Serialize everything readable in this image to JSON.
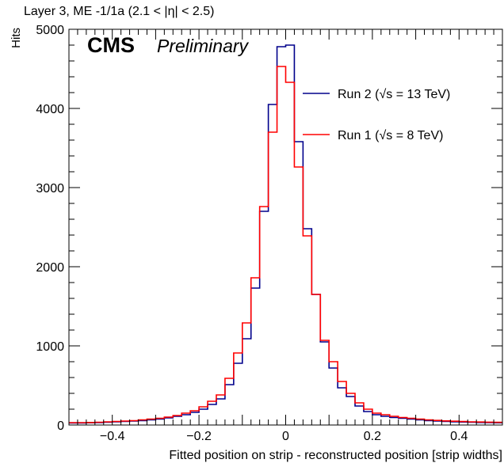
{
  "chart_data": {
    "type": "histogram",
    "title": "Layer 3, ME -1/1a (2.1 < |η| < 2.5)",
    "xlabel": "Fitted position on strip - reconstructed position [strip widths]",
    "ylabel": "Hits",
    "xlim": [
      -0.5,
      0.5
    ],
    "ylim": [
      0,
      5000
    ],
    "x_ticks": [
      -0.4,
      -0.2,
      0,
      0.2,
      0.4
    ],
    "x_tick_labels": [
      "−0.4",
      "−0.2",
      "0",
      "0.2",
      "0.4"
    ],
    "y_ticks": [
      0,
      1000,
      2000,
      3000,
      4000,
      5000
    ],
    "y_tick_labels": [
      "0",
      "1000",
      "2000",
      "3000",
      "4000",
      "5000"
    ],
    "grid": false,
    "bin_edges": [
      -0.5,
      -0.48,
      -0.46,
      -0.44,
      -0.42,
      -0.4,
      -0.38,
      -0.36,
      -0.34,
      -0.32,
      -0.3,
      -0.28,
      -0.26,
      -0.24,
      -0.22,
      -0.2,
      -0.18,
      -0.16,
      -0.14,
      -0.12,
      -0.1,
      -0.08,
      -0.06,
      -0.04,
      -0.02,
      0,
      0.02,
      0.04,
      0.06,
      0.08,
      0.1,
      0.12,
      0.14,
      0.16,
      0.18,
      0.2,
      0.22,
      0.24,
      0.26,
      0.28,
      0.3,
      0.32,
      0.34,
      0.36,
      0.38,
      0.4,
      0.42,
      0.44,
      0.46,
      0.48,
      0.5
    ],
    "series": [
      {
        "name": "Run 2 (√s = 13 TeV)",
        "color": "#00008b",
        "values": [
          25,
          25,
          28,
          30,
          35,
          40,
          45,
          50,
          55,
          65,
          75,
          90,
          110,
          130,
          160,
          200,
          260,
          330,
          510,
          780,
          1090,
          1730,
          2700,
          4050,
          4780,
          4800,
          3580,
          2480,
          1650,
          1050,
          720,
          470,
          360,
          240,
          170,
          130,
          110,
          95,
          85,
          75,
          65,
          55,
          50,
          45,
          40,
          38,
          35,
          32,
          30,
          28
        ]
      },
      {
        "name": "Run 1 (√s = 8 TeV)",
        "color": "#ff0000",
        "values": [
          30,
          30,
          32,
          35,
          40,
          45,
          50,
          55,
          65,
          75,
          85,
          100,
          120,
          150,
          180,
          230,
          300,
          380,
          590,
          910,
          1290,
          1860,
          2760,
          3700,
          4530,
          4330,
          3260,
          2390,
          1650,
          1070,
          800,
          550,
          400,
          280,
          200,
          150,
          130,
          110,
          95,
          85,
          75,
          65,
          58,
          52,
          48,
          44,
          40,
          38,
          36,
          34
        ]
      }
    ],
    "legend": {
      "placement": "top-right",
      "entries": [
        "Run 2 (√s = 13 TeV)",
        "Run 1 (√s = 8 TeV)"
      ]
    },
    "annotations": {
      "cms": "CMS",
      "preliminary": "Preliminary"
    }
  }
}
